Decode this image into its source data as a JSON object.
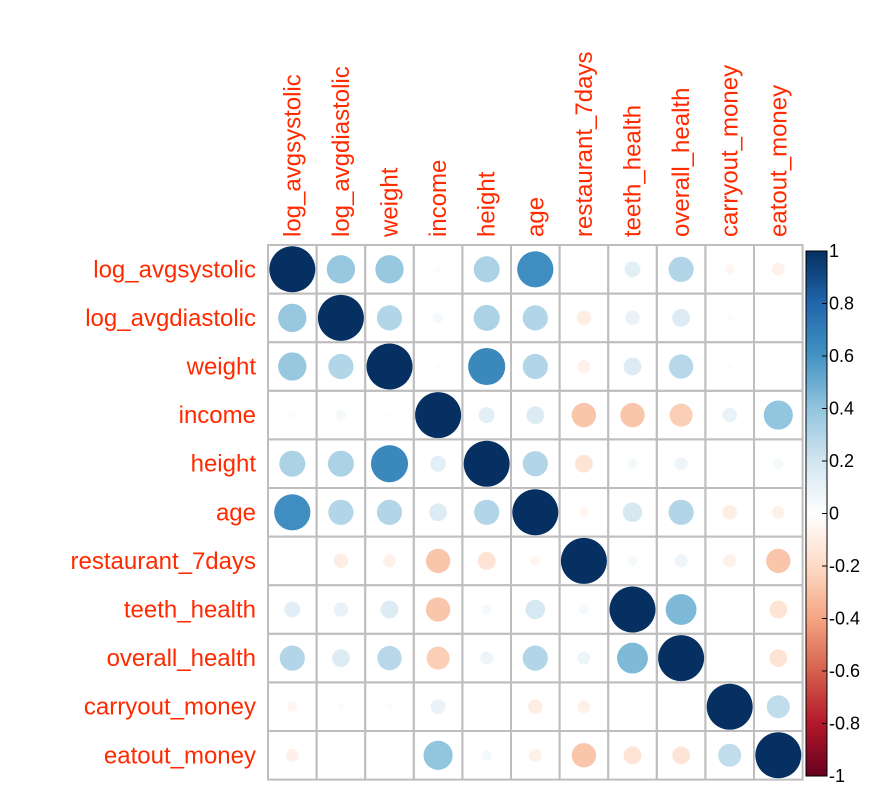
{
  "chart_data": {
    "type": "heatmap",
    "title": "",
    "variables": [
      "log_avgsystolic",
      "log_avgdiastolic",
      "weight",
      "income",
      "height",
      "age",
      "restaurant_7days",
      "teeth_health",
      "overall_health",
      "carryout_money",
      "eatout_money"
    ],
    "matrix": [
      [
        1.0,
        0.38,
        0.38,
        0.02,
        0.32,
        0.62,
        0.01,
        0.12,
        0.3,
        -0.05,
        -0.08
      ],
      [
        0.38,
        1.0,
        0.3,
        0.05,
        0.32,
        0.3,
        -0.1,
        0.1,
        0.15,
        0.02,
        0.01
      ],
      [
        0.38,
        0.3,
        1.0,
        0.02,
        0.65,
        0.3,
        -0.08,
        0.15,
        0.28,
        0.02,
        0.0
      ],
      [
        0.02,
        0.05,
        0.02,
        1.0,
        0.12,
        0.15,
        -0.28,
        -0.28,
        -0.25,
        0.1,
        0.4
      ],
      [
        0.32,
        0.32,
        0.65,
        0.12,
        1.0,
        0.3,
        -0.15,
        0.05,
        0.08,
        0.01,
        0.05
      ],
      [
        0.62,
        0.3,
        0.3,
        0.15,
        0.3,
        1.0,
        -0.05,
        0.18,
        0.3,
        -0.1,
        -0.08
      ],
      [
        0.01,
        -0.1,
        -0.08,
        -0.28,
        -0.15,
        -0.05,
        1.0,
        0.05,
        0.08,
        -0.08,
        -0.28
      ],
      [
        0.12,
        0.1,
        0.15,
        -0.28,
        0.05,
        0.18,
        0.05,
        1.0,
        0.45,
        0.01,
        -0.15
      ],
      [
        0.3,
        0.15,
        0.28,
        -0.25,
        0.08,
        0.3,
        0.08,
        0.45,
        1.0,
        0.01,
        -0.15
      ],
      [
        -0.05,
        0.02,
        0.02,
        0.1,
        0.01,
        -0.1,
        -0.08,
        0.01,
        0.01,
        1.0,
        0.25
      ],
      [
        -0.08,
        0.01,
        0.0,
        0.4,
        0.05,
        -0.08,
        -0.28,
        -0.15,
        -0.15,
        0.25,
        1.0
      ]
    ],
    "colorbar": {
      "range": [
        -1,
        1
      ],
      "ticks": [
        "1",
        "0.8",
        "0.6",
        "0.4",
        "0.2",
        "0",
        "-0.2",
        "-0.4",
        "-0.6",
        "-0.8",
        "-1"
      ],
      "colors": [
        "#67001F",
        "#B2182B",
        "#D6604D",
        "#F4A582",
        "#FDDBC7",
        "#FFFFFF",
        "#D1E5F0",
        "#92C5DE",
        "#4393C3",
        "#2166AC",
        "#053061"
      ]
    },
    "label_color": "#FF2A00",
    "grid_color": "#BEBEBE"
  }
}
